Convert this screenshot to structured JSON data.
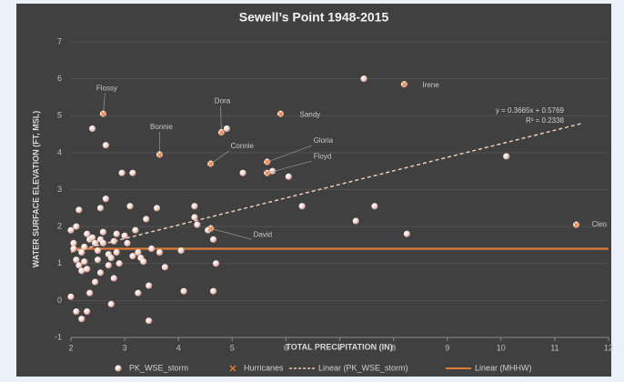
{
  "chart_data": {
    "type": "scatter",
    "title": "Sewell’s Point 1948-2015",
    "xlabel": "TOTAL PRECIPITATION (IN)",
    "ylabel": "WATER SURFACE ELEVATION (FT, MSL)",
    "xlim": [
      2,
      12
    ],
    "xticks": [
      2,
      3,
      4,
      5,
      6,
      7,
      8,
      9,
      10,
      11,
      12
    ],
    "ylim": [
      -1,
      7
    ],
    "yticks": [
      -1,
      0,
      1,
      2,
      3,
      4,
      5,
      6,
      7
    ],
    "grid": true,
    "legend": "bottom",
    "annotations": [
      "y = 0.3665x + 0.5769",
      "R² = 0.2338"
    ],
    "series": [
      {
        "name": "PK_WSE_storm",
        "color": "#f2d4cc",
        "kind": "points",
        "x": [
          2.0,
          2.05,
          2.1,
          2.05,
          2.1,
          2.0,
          2.15,
          2.2,
          2.15,
          2.1,
          2.2,
          2.2,
          2.25,
          2.3,
          2.25,
          2.3,
          2.35,
          2.3,
          2.35,
          2.4,
          2.45,
          2.5,
          2.4,
          2.45,
          2.55,
          2.5,
          2.55,
          2.6,
          2.6,
          2.55,
          2.65,
          2.65,
          2.7,
          2.7,
          2.75,
          2.75,
          2.8,
          2.8,
          2.85,
          2.85,
          2.9,
          2.95,
          3.0,
          3.05,
          3.1,
          3.15,
          3.15,
          3.2,
          3.25,
          3.25,
          3.3,
          3.35,
          3.4,
          3.45,
          3.45,
          3.5,
          3.6,
          3.65,
          3.75,
          4.05,
          4.1,
          4.3,
          4.3,
          4.35,
          4.55,
          4.65,
          4.65,
          4.7,
          4.9,
          5.2,
          5.75,
          6.05,
          6.3,
          7.3,
          7.45,
          7.65,
          8.25,
          10.1
        ],
        "values": [
          1.9,
          1.55,
          2.0,
          1.4,
          1.1,
          0.1,
          0.95,
          1.3,
          2.45,
          -0.3,
          -0.5,
          0.8,
          1.45,
          0.85,
          1.05,
          1.8,
          1.65,
          -0.3,
          0.2,
          1.7,
          1.55,
          1.35,
          4.65,
          0.5,
          1.65,
          1.1,
          0.75,
          1.55,
          1.85,
          2.5,
          2.75,
          4.2,
          1.25,
          0.95,
          -0.1,
          1.15,
          1.6,
          0.6,
          1.3,
          1.8,
          1.0,
          3.45,
          1.75,
          1.55,
          2.55,
          1.2,
          3.45,
          1.9,
          1.3,
          0.2,
          1.15,
          1.05,
          2.2,
          0.4,
          -0.55,
          1.4,
          2.5,
          1.3,
          0.9,
          1.35,
          0.25,
          2.55,
          2.25,
          2.05,
          1.9,
          1.65,
          0.25,
          1.0,
          4.65,
          3.45,
          3.5,
          3.35,
          2.55,
          2.15,
          6.0,
          2.55,
          1.8,
          3.9
        ]
      },
      {
        "name": "Hurricanes",
        "color": "#e87a35",
        "kind": "hurricanes",
        "labels": [
          "Flossy",
          "Bonnie",
          "Dora",
          "Connie",
          "Sandy",
          "Gloria",
          "Floyd",
          "Irene",
          "David",
          "Cleo"
        ],
        "x": [
          2.6,
          3.65,
          4.8,
          4.6,
          5.9,
          5.65,
          5.65,
          8.2,
          4.6,
          11.4
        ],
        "values": [
          5.05,
          3.95,
          4.55,
          3.7,
          5.05,
          3.75,
          3.45,
          5.85,
          1.95,
          2.05
        ]
      },
      {
        "name": "Linear (PK_WSE_storm)",
        "color": "#f0c8b8",
        "kind": "dashed",
        "x": [
          2,
          11.5
        ],
        "values": [
          1.31,
          4.79
        ]
      },
      {
        "name": "Linear (MHHW)",
        "color": "#e07b39",
        "kind": "solid",
        "x": [
          2,
          12
        ],
        "values": [
          1.4,
          1.4
        ]
      }
    ]
  }
}
